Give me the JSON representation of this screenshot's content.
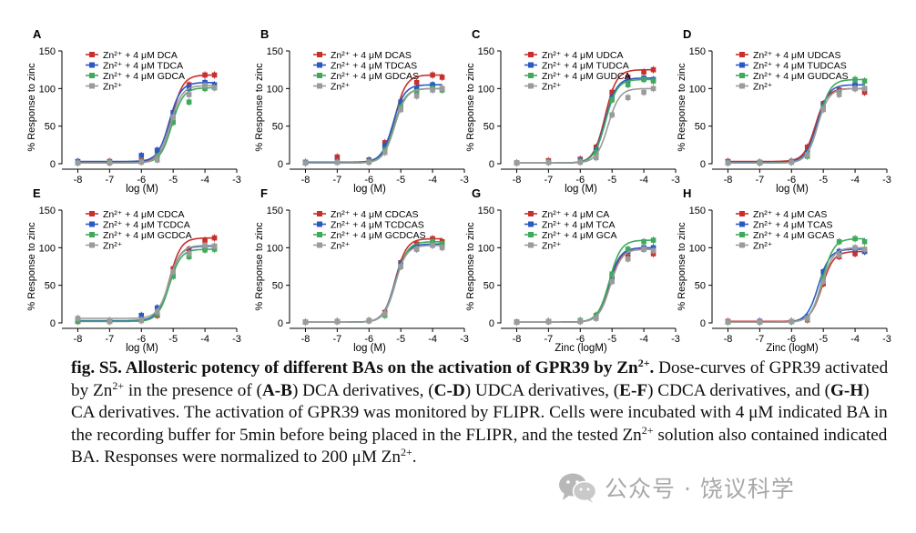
{
  "figure": {
    "panels": [
      {
        "letter": "A",
        "xlabel": "log (M)",
        "ylabel": "% Response to zinc",
        "legend": [
          "Zn²⁺ + 4 μM DCA",
          "Zn²⁺ + 4 μM TDCA",
          "Zn²⁺ + 4 μM GDCA",
          "Zn²⁺"
        ]
      },
      {
        "letter": "B",
        "xlabel": "log (M)",
        "ylabel": "% Response to zinc",
        "legend": [
          "Zn²⁺ + 4 μM DCAS",
          "Zn²⁺ + 4 μM TDCAS",
          "Zn²⁺ + 4 μM GDCAS",
          "Zn²⁺"
        ]
      },
      {
        "letter": "C",
        "xlabel": "log (M)",
        "ylabel": "% Response to zinc",
        "legend": [
          "Zn²⁺ + 4 μM UDCA",
          "Zn²⁺ + 4 μM TUDCA",
          "Zn²⁺ + 4 μM GUDCA",
          "Zn²⁺"
        ]
      },
      {
        "letter": "D",
        "xlabel": "log (M)",
        "ylabel": "% Response to zinc",
        "legend": [
          "Zn²⁺ + 4 μM UDCAS",
          "Zn²⁺ + 4 μM TUDCAS",
          "Zn²⁺ + 4 μM GUDCAS",
          "Zn²⁺"
        ]
      },
      {
        "letter": "E",
        "xlabel": "log (M)",
        "ylabel": "% Response to zinc",
        "legend": [
          "Zn²⁺ + 4 μM CDCA",
          "Zn²⁺ + 4 μM TCDCA",
          "Zn²⁺ + 4 μM GCDCA",
          "Zn²⁺"
        ]
      },
      {
        "letter": "F",
        "xlabel": "log (M)",
        "ylabel": "% Response to zinc",
        "legend": [
          "Zn²⁺ + 4 μM CDCAS",
          "Zn²⁺ + 4 μM TCDCAS",
          "Zn²⁺ + 4 μM GCDCAS",
          "Zn²⁺"
        ]
      },
      {
        "letter": "G",
        "xlabel": "Zinc (logM)",
        "ylabel": "% Response to zinc",
        "legend": [
          "Zn²⁺ + 4 μM CA",
          "Zn²⁺ + 4 μM TCA",
          "Zn²⁺ + 4 μM GCA",
          "Zn²⁺"
        ]
      },
      {
        "letter": "H",
        "xlabel": "Zinc (logM)",
        "ylabel": "% Response to zinc",
        "legend": [
          "Zn²⁺ + 4 μM CAS",
          "Zn²⁺ + 4 μM TCAS",
          "Zn²⁺ + 4 μM GCAS",
          "Zn²⁺"
        ]
      }
    ]
  },
  "chart_data": [
    {
      "type": "scatter",
      "panel": "A",
      "x": [
        -8,
        -7,
        -6,
        -5.5,
        -5,
        -4.5,
        -4,
        -3.7
      ],
      "xlim": [
        -8.5,
        -3
      ],
      "ylim": [
        0,
        150
      ],
      "xticks": [
        "-8",
        "-7",
        "-6",
        "-5",
        "-4",
        "-3"
      ],
      "yticks": [
        "0",
        "50",
        "100",
        "150"
      ],
      "colors": [
        "#c8302c",
        "#2b59c3",
        "#3faa5c",
        "#9b9b9b"
      ],
      "series": [
        {
          "name": "Zn²⁺ + 4 μM DCA",
          "values": [
            2,
            3,
            4,
            17,
            65,
            105,
            118,
            118
          ]
        },
        {
          "name": "Zn²⁺ + 4 μM TDCA",
          "values": [
            3,
            2,
            11,
            18,
            68,
            100,
            108,
            105
          ]
        },
        {
          "name": "Zn²⁺ + 4 μM GDCA",
          "values": [
            1,
            2,
            3,
            10,
            55,
            82,
            100,
            101
          ]
        },
        {
          "name": "Zn²⁺",
          "values": [
            1,
            1,
            2,
            5,
            62,
            92,
            104,
            101
          ]
        }
      ]
    },
    {
      "type": "scatter",
      "panel": "B",
      "x": [
        -8,
        -7,
        -6,
        -5.5,
        -5,
        -4.5,
        -4,
        -3.7
      ],
      "xlim": [
        -8.5,
        -3
      ],
      "ylim": [
        0,
        150
      ],
      "xticks": [
        "-8",
        "-7",
        "-6",
        "-5",
        "-4",
        "-3"
      ],
      "yticks": [
        "0",
        "50",
        "100",
        "150"
      ],
      "colors": [
        "#c8302c",
        "#2b59c3",
        "#3faa5c",
        "#9b9b9b"
      ],
      "series": [
        {
          "name": "Zn²⁺ + 4 μM DCAS",
          "values": [
            1,
            9,
            5,
            28,
            80,
            108,
            118,
            115
          ]
        },
        {
          "name": "Zn²⁺ + 4 μM TDCAS",
          "values": [
            2,
            3,
            4,
            24,
            82,
            100,
            105,
            100
          ]
        },
        {
          "name": "Zn²⁺ + 4 μM GDCAS",
          "values": [
            1,
            2,
            3,
            18,
            75,
            95,
            100,
            98
          ]
        },
        {
          "name": "Zn²⁺",
          "values": [
            1,
            2,
            2,
            15,
            72,
            90,
            98,
            100
          ]
        }
      ]
    },
    {
      "type": "scatter",
      "panel": "C",
      "x": [
        -8,
        -7,
        -6,
        -5.5,
        -5,
        -4.5,
        -4,
        -3.7
      ],
      "xlim": [
        -8.5,
        -3
      ],
      "ylim": [
        0,
        150
      ],
      "xticks": [
        "-8",
        "-7",
        "-6",
        "-5",
        "-4",
        "-3"
      ],
      "yticks": [
        "0",
        "50",
        "100",
        "150"
      ],
      "colors": [
        "#c8302c",
        "#2b59c3",
        "#3faa5c",
        "#9b9b9b"
      ],
      "series": [
        {
          "name": "Zn²⁺ + 4 μM UDCA",
          "values": [
            1,
            4,
            6,
            22,
            95,
            115,
            122,
            125
          ]
        },
        {
          "name": "Zn²⁺ + 4 μM TUDCA",
          "values": [
            1,
            2,
            4,
            18,
            88,
            110,
            114,
            112
          ]
        },
        {
          "name": "Zn²⁺ + 4 μM GUDCA",
          "values": [
            1,
            2,
            3,
            15,
            85,
            105,
            112,
            110
          ]
        },
        {
          "name": "Zn²⁺",
          "values": [
            1,
            2,
            2,
            8,
            65,
            88,
            95,
            100
          ]
        }
      ]
    },
    {
      "type": "scatter",
      "panel": "D",
      "x": [
        -8,
        -7,
        -6,
        -5.5,
        -5,
        -4.5,
        -4,
        -3.7
      ],
      "xlim": [
        -8.5,
        -3
      ],
      "ylim": [
        0,
        150
      ],
      "xticks": [
        "-8",
        "-7",
        "-6",
        "-5",
        "-4",
        "-3"
      ],
      "yticks": [
        "0",
        "50",
        "100",
        "150"
      ],
      "colors": [
        "#c8302c",
        "#2b59c3",
        "#3faa5c",
        "#9b9b9b"
      ],
      "series": [
        {
          "name": "Zn²⁺ + 4 μM UDCAS",
          "values": [
            3,
            1,
            3,
            22,
            80,
            98,
            100,
            95
          ]
        },
        {
          "name": "Zn²⁺ + 4 μM TUDCAS",
          "values": [
            2,
            2,
            3,
            15,
            78,
            96,
            105,
            100
          ]
        },
        {
          "name": "Zn²⁺ + 4 μM GUDCAS",
          "values": [
            1,
            2,
            2,
            10,
            75,
            95,
            112,
            110
          ]
        },
        {
          "name": "Zn²⁺",
          "values": [
            1,
            1,
            2,
            12,
            72,
            92,
            100,
            100
          ]
        }
      ]
    },
    {
      "type": "scatter",
      "panel": "E",
      "x": [
        -8,
        -7,
        -6,
        -5.5,
        -5,
        -4.5,
        -4,
        -3.7
      ],
      "xlim": [
        -8.5,
        -3
      ],
      "ylim": [
        0,
        150
      ],
      "xticks": [
        "-8",
        "-7",
        "-6",
        "-5",
        "-4",
        "-3"
      ],
      "yticks": [
        "0",
        "50",
        "100",
        "150"
      ],
      "colors": [
        "#c8302c",
        "#2b59c3",
        "#3faa5c",
        "#9b9b9b"
      ],
      "series": [
        {
          "name": "Zn²⁺ + 4 μM CDCA",
          "values": [
            2,
            2,
            4,
            10,
            72,
            98,
            110,
            113
          ]
        },
        {
          "name": "Zn²⁺ + 4 μM TCDCA",
          "values": [
            3,
            3,
            10,
            20,
            65,
            90,
            100,
            102
          ]
        },
        {
          "name": "Zn²⁺ + 4 μM GCDCA",
          "values": [
            2,
            2,
            4,
            12,
            62,
            88,
            97,
            98
          ]
        },
        {
          "name": "Zn²⁺",
          "values": [
            6,
            2,
            3,
            15,
            68,
            92,
            103,
            102
          ]
        }
      ]
    },
    {
      "type": "scatter",
      "panel": "F",
      "x": [
        -8,
        -7,
        -6,
        -5.5,
        -5,
        -4.5,
        -4,
        -3.7
      ],
      "xlim": [
        -8.5,
        -3
      ],
      "ylim": [
        0,
        150
      ],
      "xticks": [
        "-8",
        "-7",
        "-6",
        "-5",
        "-4",
        "-3"
      ],
      "yticks": [
        "0",
        "50",
        "100",
        "150"
      ],
      "colors": [
        "#c8302c",
        "#2b59c3",
        "#3faa5c",
        "#9b9b9b"
      ],
      "series": [
        {
          "name": "Zn²⁺ + 4 μM CDCAS",
          "values": [
            1,
            2,
            3,
            14,
            80,
            105,
            112,
            108
          ]
        },
        {
          "name": "Zn²⁺ + 4 μM TCDCAS",
          "values": [
            1,
            2,
            3,
            12,
            78,
            100,
            105,
            103
          ]
        },
        {
          "name": "Zn²⁺ + 4 μM GCDCAS",
          "values": [
            1,
            2,
            3,
            10,
            75,
            98,
            108,
            105
          ]
        },
        {
          "name": "Zn²⁺",
          "values": [
            1,
            2,
            3,
            12,
            75,
            98,
            103,
            100
          ]
        }
      ]
    },
    {
      "type": "scatter",
      "panel": "G",
      "x": [
        -8,
        -7,
        -6,
        -5.5,
        -5,
        -4.5,
        -4,
        -3.7
      ],
      "xlim": [
        -8.5,
        -3
      ],
      "ylim": [
        0,
        150
      ],
      "xticks": [
        "-8",
        "-7",
        "-6",
        "-5",
        "-4",
        "-3"
      ],
      "yticks": [
        "0",
        "50",
        "100",
        "150"
      ],
      "colors": [
        "#c8302c",
        "#2b59c3",
        "#3faa5c",
        "#9b9b9b"
      ],
      "series": [
        {
          "name": "Zn²⁺ + 4 μM CA",
          "values": [
            1,
            2,
            2,
            10,
            58,
            88,
            98,
            92
          ]
        },
        {
          "name": "Zn²⁺ + 4 μM TCA",
          "values": [
            1,
            2,
            3,
            8,
            62,
            95,
            100,
            100
          ]
        },
        {
          "name": "Zn²⁺ + 4 μM GCA",
          "values": [
            1,
            2,
            3,
            10,
            65,
            98,
            108,
            110
          ]
        },
        {
          "name": "Zn²⁺",
          "values": [
            1,
            2,
            2,
            6,
            55,
            85,
            98,
            96
          ]
        }
      ]
    },
    {
      "type": "scatter",
      "panel": "H",
      "x": [
        -8,
        -7,
        -6,
        -5.5,
        -5,
        -4.5,
        -4,
        -3.7
      ],
      "xlim": [
        -8.5,
        -3
      ],
      "ylim": [
        0,
        150
      ],
      "xticks": [
        "-8",
        "-7",
        "-6",
        "-5",
        "-4",
        "-3"
      ],
      "yticks": [
        "0",
        "50",
        "100",
        "150"
      ],
      "colors": [
        "#c8302c",
        "#2b59c3",
        "#3faa5c",
        "#9b9b9b"
      ],
      "series": [
        {
          "name": "Zn²⁺ + 4 μM CAS",
          "values": [
            2,
            2,
            2,
            4,
            52,
            88,
            92,
            95
          ]
        },
        {
          "name": "Zn²⁺ + 4 μM TCAS",
          "values": [
            1,
            2,
            2,
            8,
            68,
            95,
            98,
            95
          ]
        },
        {
          "name": "Zn²⁺ + 4 μM GCAS",
          "values": [
            1,
            1,
            2,
            5,
            60,
            108,
            112,
            108
          ]
        },
        {
          "name": "Zn²⁺",
          "values": [
            1,
            1,
            2,
            6,
            55,
            90,
            100,
            98
          ]
        }
      ]
    }
  ],
  "caption": {
    "fig_label": "fig. S5. Allosteric potency of different BAs on the activation of GPR39 by Zn",
    "fig_label_sup": "2+",
    "fig_label_end": ".",
    "t1": " Dose-curves of GPR39 activated by Zn",
    "s1": "2+",
    "t2": " in the presence of (",
    "b1": "A-B",
    "t3": ") DCA derivatives, (",
    "b2": "C-D",
    "t4": ") UDCA derivatives, (",
    "b3": "E-F",
    "t5": ") CDCA derivatives, and (",
    "b4": "G-H",
    "t6": ") CA derivatives. The activation of GPR39 was monitored by FLIPR. Cells were incubated with 4 μM indicated BA in the recording buffer for 5min before being placed in the FLIPR, and the tested Zn",
    "s2": "2+",
    "t7": " solution also contained indicated BA. Responses were normalized to 200 μM Zn",
    "s3": "2+",
    "t8": "."
  },
  "watermark": {
    "text": "公众号 · 饶议科学",
    "icon": "wechat-icon"
  }
}
